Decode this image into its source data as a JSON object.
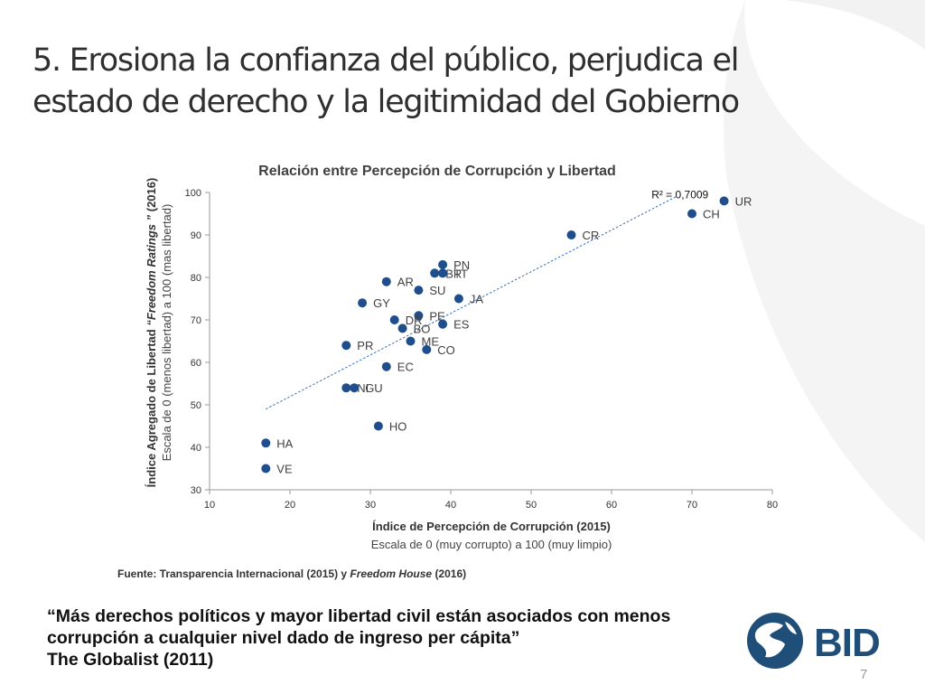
{
  "slide": {
    "title_line1": "5. Erosiona la confianza del público, perjudica el",
    "title_line2": "estado de derecho y la legitimidad del Gobierno",
    "source_prefix": "Fuente: Transparencia Internacional (2015) y ",
    "source_italic": "Freedom House",
    "source_suffix": " (2016)",
    "quote_line1": "“Más derechos políticos y mayor libertad civil están asociados con menos",
    "quote_line2": "corrupción a cualquier nivel dado de ingreso per cápita”",
    "quote_line3": "The Globalist (2011)",
    "logo_text": "BID",
    "page_number": "7",
    "colors": {
      "marker": "#1f4e8c",
      "trend": "#3a6fb7",
      "logo": "#1f4e79"
    }
  },
  "chart_data": {
    "type": "scatter",
    "title": "Relación entre Percepción de Corrupción y Libertad",
    "xlabel": "Índice de Percepción de Corrupción (2015)",
    "xlabel_sub": "Escala de 0 (muy corrupto) a 100 (muy limpio)",
    "ylabel_part1": "Índice Agregado de Libertad ",
    "ylabel_italic": "“Freedom Ratings ”",
    "ylabel_part2": " (2016)",
    "ylabel_sub": "Escala de  0 (menos libertad) a 100 (mas libertad)",
    "xlim": [
      10,
      80
    ],
    "ylim": [
      30,
      100
    ],
    "xticks": [
      10,
      20,
      30,
      40,
      50,
      60,
      70,
      80
    ],
    "yticks": [
      30,
      40,
      50,
      60,
      70,
      80,
      90,
      100
    ],
    "points": [
      {
        "label": "UR",
        "x": 74,
        "y": 98
      },
      {
        "label": "CH",
        "x": 70,
        "y": 95
      },
      {
        "label": "CR",
        "x": 55,
        "y": 90
      },
      {
        "label": "PN",
        "x": 39,
        "y": 83
      },
      {
        "label": "BR",
        "x": 38,
        "y": 81
      },
      {
        "label": "TT",
        "x": 39,
        "y": 81
      },
      {
        "label": "AR",
        "x": 32,
        "y": 79
      },
      {
        "label": "SU",
        "x": 36,
        "y": 77
      },
      {
        "label": "JA",
        "x": 41,
        "y": 75
      },
      {
        "label": "GY",
        "x": 29,
        "y": 74
      },
      {
        "label": "PE",
        "x": 36,
        "y": 71
      },
      {
        "label": "DR",
        "x": 33,
        "y": 70
      },
      {
        "label": "BO",
        "x": 34,
        "y": 68
      },
      {
        "label": "ES",
        "x": 39,
        "y": 69
      },
      {
        "label": "ME",
        "x": 35,
        "y": 65
      },
      {
        "label": "CO",
        "x": 37,
        "y": 63
      },
      {
        "label": "PR",
        "x": 27,
        "y": 64
      },
      {
        "label": "EC",
        "x": 32,
        "y": 59
      },
      {
        "label": "NI",
        "x": 27,
        "y": 54
      },
      {
        "label": "GU",
        "x": 28,
        "y": 54
      },
      {
        "label": "HO",
        "x": 31,
        "y": 45
      },
      {
        "label": "HA",
        "x": 17,
        "y": 41
      },
      {
        "label": "VE",
        "x": 17,
        "y": 35
      }
    ],
    "trendline": {
      "x": [
        17,
        68
      ],
      "y": [
        49,
        99
      ]
    },
    "r_squared": "R² = 0,7009",
    "grid": false,
    "legend": "none"
  }
}
